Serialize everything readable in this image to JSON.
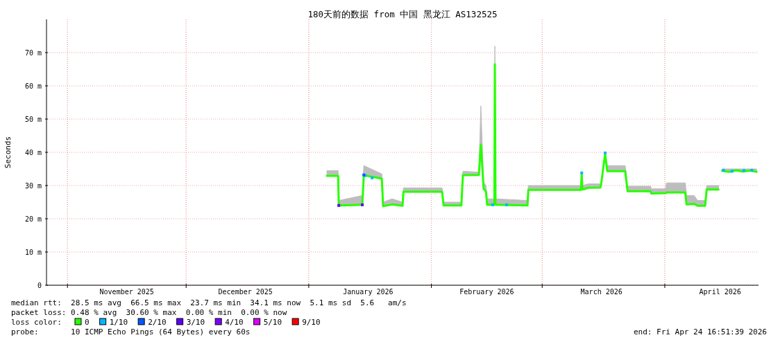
{
  "chart_data": {
    "type": "line",
    "title": "180天前的数据 from 中国 黑龙江 AS132525",
    "ylabel": "Seconds",
    "xlim": [
      "2025-10-26T16:51",
      "2026-04-24T16:51"
    ],
    "xticks": [
      {
        "value": "2025-11-01",
        "label": null
      },
      {
        "value": "2025-11-16",
        "label": "November 2025"
      },
      {
        "value": "2025-12-01",
        "label": null
      },
      {
        "value": "2025-12-16",
        "label": "December 2025"
      },
      {
        "value": "2026-01-01",
        "label": null
      },
      {
        "value": "2026-01-16",
        "label": "January 2026"
      },
      {
        "value": "2026-02-01",
        "label": null
      },
      {
        "value": "2026-02-15",
        "label": "February 2026"
      },
      {
        "value": "2026-03-01",
        "label": null
      },
      {
        "value": "2026-03-16",
        "label": "March 2026"
      },
      {
        "value": "2026-04-01",
        "label": null
      },
      {
        "value": "2026-04-15",
        "label": "April 2026"
      }
    ],
    "ylim": [
      0,
      80
    ],
    "yticks": [
      0,
      {
        "value": 10,
        "label": "10 m"
      },
      {
        "value": 20,
        "label": "20 m"
      },
      {
        "value": 30,
        "label": "30 m"
      },
      {
        "value": 40,
        "label": "40 m"
      },
      {
        "value": 50,
        "label": "50 m"
      },
      {
        "value": 60,
        "label": "60 m"
      },
      {
        "value": 70,
        "label": "70 m"
      }
    ],
    "grid": true,
    "legend": "bottom",
    "legend_title": "loss color:",
    "series": [
      {
        "name": "0",
        "color": "#26ff00",
        "x": [
          "2026-01-05T14:00",
          "2026-01-08T10:00",
          "2026-01-08T14:00",
          "2026-01-14T13:00",
          "2026-01-14T22:00",
          "2026-01-19T11:00",
          "2026-01-19T19:00",
          "2026-01-22T02:00",
          "2026-01-24T17:00",
          "2026-01-24T22:00",
          "2026-02-03T17:00",
          "2026-02-04T02:00",
          "2026-02-08T14:00",
          "2026-02-08T23:00",
          "2026-02-13T00:00",
          "2026-02-13T12:00",
          "2026-02-14T05:00",
          "2026-02-14T19:00",
          "2026-02-15T02:00",
          "2026-02-16T22:00",
          "2026-02-17T01:00",
          "2026-02-17T05:00",
          "2026-02-25T07:00",
          "2026-02-25T12:00",
          "2026-03-10T19:00",
          "2026-03-11T00:00",
          "2026-03-11T04:00",
          "2026-03-12T17:00",
          "2026-03-15T17:00",
          "2026-03-15T22:00",
          "2026-03-16T22:00",
          "2026-03-17T11:00",
          "2026-03-22T00:00",
          "2026-03-22T14:00",
          "2026-03-28T10:00",
          "2026-03-28T14:00",
          "2026-04-01T05:00",
          "2026-04-01T10:00",
          "2026-04-06T04:00",
          "2026-04-06T12:00",
          "2026-04-08T10:00",
          "2026-04-09T07:00",
          "2026-04-11T05:00",
          "2026-04-11T14:00",
          "2026-04-14T14:00",
          "2026-04-15T00:00",
          "2026-04-15T12:00",
          "2026-04-17T05:00",
          "2026-04-19T00:00",
          "2026-04-20T17:00",
          "2026-04-22T12:00",
          "2026-04-24T05:00"
        ],
        "values": [
          32.9,
          32.9,
          24.0,
          24.2,
          33.1,
          32.1,
          23.8,
          24.3,
          23.9,
          28.1,
          28.1,
          24.0,
          24.0,
          33.1,
          33.2,
          42.3,
          29.0,
          28.2,
          24.2,
          24.2,
          66.5,
          24.2,
          24.0,
          28.7,
          28.7,
          33.5,
          28.8,
          29.3,
          29.4,
          30.5,
          39.5,
          34.3,
          34.3,
          28.3,
          28.3,
          27.6,
          27.7,
          27.9,
          27.9,
          24.3,
          24.5,
          23.9,
          23.9,
          28.8,
          28.8,
          null,
          34.4,
          34.1,
          34.6,
          34.2,
          34.5,
          34.1
        ],
        "lower": [
          32.9,
          32.9,
          24.0,
          24.2,
          33.1,
          32.1,
          23.8,
          24.3,
          23.9,
          28.1,
          28.1,
          24.0,
          24.0,
          33.1,
          33.2,
          42.3,
          29.0,
          28.2,
          24.2,
          24.2,
          66.5,
          24.2,
          24.0,
          28.7,
          28.7,
          33.5,
          28.8,
          29.3,
          29.4,
          30.5,
          39.5,
          34.3,
          34.3,
          28.3,
          28.3,
          27.6,
          27.7,
          27.9,
          27.9,
          24.3,
          24.5,
          23.9,
          23.9,
          28.8,
          28.8,
          null,
          34.4,
          34.1,
          34.6,
          34.2,
          34.5,
          34.1
        ],
        "upper": [
          34.5,
          34.5,
          25.5,
          27,
          36,
          33.5,
          25,
          26,
          25,
          29.3,
          29.3,
          25,
          25,
          34.3,
          34,
          54,
          31,
          30,
          26,
          26,
          72,
          26,
          25.5,
          30,
          30,
          34,
          30,
          30.5,
          30.5,
          31,
          40,
          36,
          36,
          29.8,
          29.8,
          29,
          29,
          30.8,
          30.8,
          27,
          27,
          25.5,
          25.5,
          30,
          30,
          null,
          35,
          35,
          35,
          35,
          35,
          35
        ]
      },
      {
        "name": "1/10",
        "type": "scatter",
        "marker": "square",
        "color": "#00b8ff",
        "x": [
          "2026-01-15T06:00",
          "2026-01-17T00:00",
          "2026-02-16T12:00",
          "2026-02-20T00:00",
          "2026-03-11T00:00",
          "2026-03-16T22:00",
          "2026-04-15T20:00",
          "2026-04-18T00:00",
          "2026-04-21T00:00",
          "2026-04-23T00:00"
        ],
        "values": [
          33.0,
          32.3,
          24.2,
          24.2,
          33.8,
          39.8,
          34.6,
          34.3,
          34.5,
          34.6
        ]
      },
      {
        "name": "2/10",
        "type": "scatter",
        "marker": "square",
        "color": "#0059ff",
        "x": [
          "2026-01-14T22:00"
        ],
        "values": [
          33.2
        ]
      },
      {
        "name": "3/10",
        "type": "scatter",
        "marker": "square",
        "color": "#5e00ff",
        "x": [
          "2026-01-08T14:00",
          "2026-01-14T13:00"
        ],
        "values": [
          24.0,
          24.2
        ]
      },
      {
        "name": "4/10",
        "type": "scatter",
        "color": "#7e00ff"
      },
      {
        "name": "5/10",
        "type": "scatter",
        "color": "#dd00ff"
      },
      {
        "name": "9/10",
        "type": "scatter",
        "color": "#ff0000"
      }
    ],
    "annotations": [
      "median rtt:  28.5 ms avg  66.5 ms max  23.7 ms min  34.1 ms now  5.1 ms sd  5.6   am/s",
      "packet loss: 0.48 % avg  30.60 % max  0.00 % min  0.00 % now",
      "probe:       10 ICMP Echo Pings (64 Bytes) every 60s",
      "end: Fri Apr 24 16:51:39 2026"
    ]
  }
}
